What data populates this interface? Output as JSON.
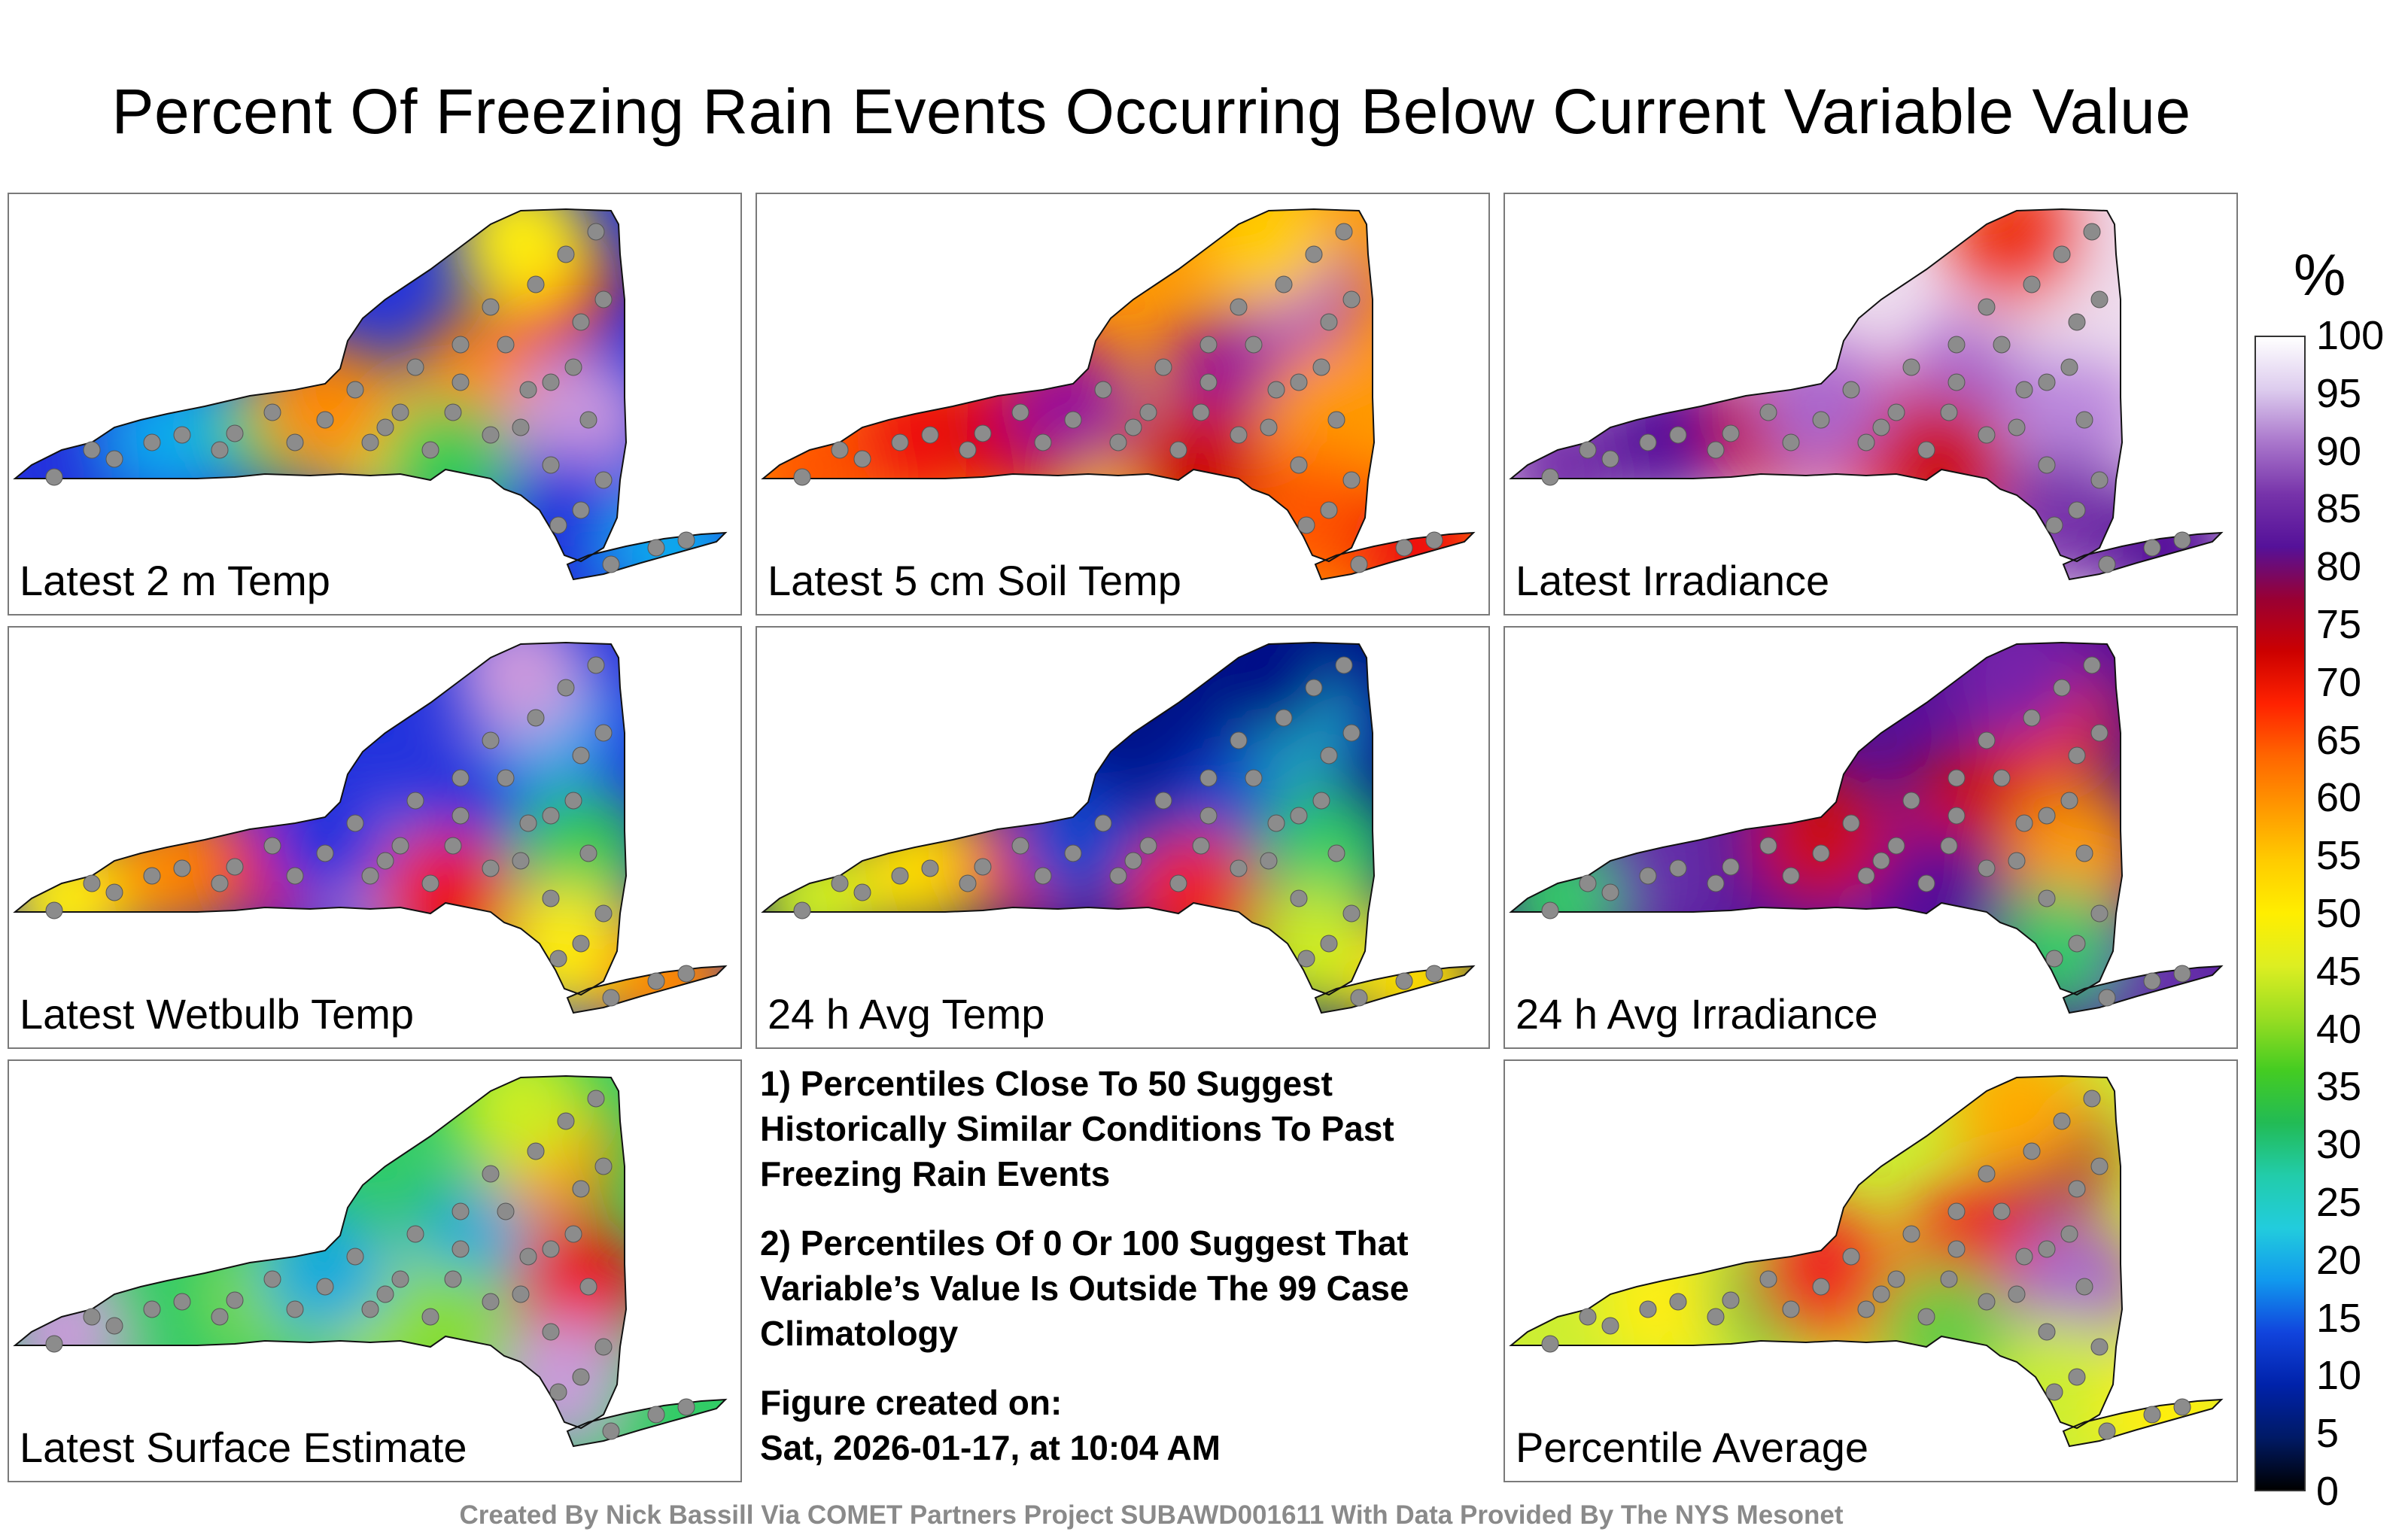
{
  "title": "Percent Of Freezing Rain Events Occurring Below Current Variable Value",
  "panels": [
    {
      "label": "Latest 2 m Temp",
      "palette": [
        "#2233dd",
        "#11aaee",
        "#33cc55",
        "#ffee11",
        "#ff8800",
        "#ee1111",
        "#cc99dd"
      ]
    },
    {
      "label": "Latest 5 cm Soil Temp",
      "palette": [
        "#ff9900",
        "#ff5500",
        "#ee1111",
        "#cc0000",
        "#ffcc00",
        "#991199",
        "#aa44cc"
      ]
    },
    {
      "label": "Latest Irradiance",
      "palette": [
        "#eeddee",
        "#bb88dd",
        "#7733aa",
        "#551199",
        "#cc1111",
        "#ee3311",
        "#aa66cc"
      ]
    },
    {
      "label": "Latest Wetbulb Temp",
      "palette": [
        "#2233dd",
        "#11aaee",
        "#33cc55",
        "#ffee11",
        "#ff8800",
        "#ee1111",
        "#cc99dd"
      ]
    },
    {
      "label": "24 h Avg Temp",
      "palette": [
        "#001188",
        "#1144cc",
        "#22aacc",
        "#33cc66",
        "#ccee22",
        "#ffdd00",
        "#ee2222"
      ]
    },
    {
      "label": "24 h Avg Irradiance",
      "palette": [
        "#551199",
        "#7722aa",
        "#cc1111",
        "#ee3311",
        "#ff9900",
        "#33cc66",
        "#6633aa"
      ]
    },
    {
      "label": "Latest Surface Estimate",
      "palette": [
        "#33cc66",
        "#88dd33",
        "#ccee22",
        "#11aadd",
        "#ff8800",
        "#ee1111",
        "#cc99dd"
      ]
    },
    {
      "label": "Percentile Average",
      "palette": [
        "#ccee33",
        "#ffee11",
        "#66cc44",
        "#ffaa00",
        "#ee2222",
        "#aa1133",
        "#aa66cc"
      ]
    }
  ],
  "notes": {
    "note1": "1) Percentiles Close To 50 Suggest Historically Similar Conditions To Past Freezing Rain Events",
    "note2": "2) Percentiles Of 0 Or 100 Suggest That Variable’s Value Is Outside The 99 Case Climatology",
    "created_label": "Figure created on:",
    "created_date": "Sat, 2026-01-17, at 10:04 AM"
  },
  "colorbar": {
    "unit": "%",
    "ticks": [
      "100",
      "95",
      "90",
      "85",
      "80",
      "75",
      "70",
      "65",
      "60",
      "55",
      "50",
      "45",
      "40",
      "35",
      "30",
      "25",
      "20",
      "15",
      "10",
      "5",
      "0"
    ],
    "colors": [
      "#000000",
      "#001a66",
      "#0022aa",
      "#1144dd",
      "#1199ee",
      "#22ccdd",
      "#22ccaa",
      "#22bb55",
      "#44cc22",
      "#99dd22",
      "#ddee22",
      "#ffee00",
      "#ffcc00",
      "#ff9900",
      "#ff6600",
      "#ff2200",
      "#cc0000",
      "#990033",
      "#551199",
      "#7733aa",
      "#aa77cc",
      "#ddccee",
      "#ffffff"
    ]
  },
  "credit": "Created By Nick Bassill Via COMET Partners Project SUBAWD001611 With Data Provided By The NYS Mesonet"
}
